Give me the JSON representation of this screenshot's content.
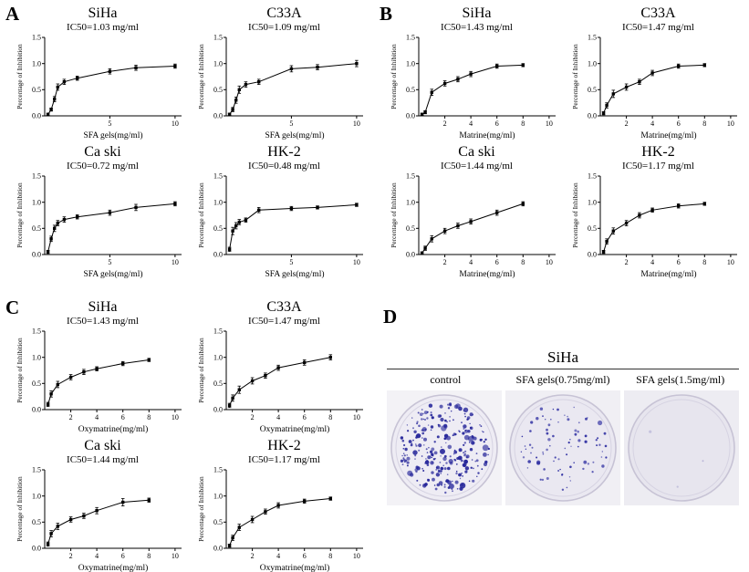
{
  "panels": {
    "A": {
      "label": "A"
    },
    "B": {
      "label": "B"
    },
    "C": {
      "label": "C"
    },
    "D": {
      "label": "D",
      "title": "SiHa",
      "conditions": [
        {
          "label": "control",
          "colonies": 270,
          "dot_scale": 1.0,
          "bg": "#f3f2f6",
          "dish_fill": "#eeecf4",
          "dot_color": "#26269a"
        },
        {
          "label": "SFA gels(0.75mg/ml)",
          "colonies": 85,
          "dot_scale": 0.72,
          "bg": "#f0eff4",
          "dish_fill": "#eae8f1",
          "dot_color": "#3434a4"
        },
        {
          "label": "SFA gels(1.5mg/ml)",
          "colonies": 3,
          "dot_scale": 0.5,
          "bg": "#edecf2",
          "dish_fill": "#e7e5ee",
          "dot_color": "#b7b4d6"
        }
      ]
    }
  },
  "chart_data": [
    {
      "type": "line",
      "panel": "A",
      "title": "SiHa",
      "subtitle": "IC50=1.03 mg/ml",
      "xlabel": "SFA gels(mg/ml)",
      "ylabel": "Percentage of Inhibition",
      "xlim": [
        0,
        10.5
      ],
      "ylim": [
        0,
        1.5
      ],
      "xticks": [
        5,
        10
      ],
      "yticks": [
        0,
        0.5,
        1,
        1.5
      ],
      "x": [
        0.25,
        0.5,
        0.75,
        1,
        1.5,
        2.5,
        5,
        7,
        10
      ],
      "y": [
        0.03,
        0.12,
        0.32,
        0.55,
        0.65,
        0.72,
        0.85,
        0.92,
        0.95
      ],
      "yerr": [
        0.02,
        0.03,
        0.05,
        0.06,
        0.05,
        0.04,
        0.05,
        0.05,
        0.04
      ],
      "marker": "square",
      "line_color": "#000000"
    },
    {
      "type": "line",
      "panel": "A",
      "title": "C33A",
      "subtitle": "IC50=1.09 mg/ml",
      "xlabel": "SFA gels(mg/ml)",
      "ylabel": "Percentage of Inhibition",
      "xlim": [
        0,
        10.5
      ],
      "ylim": [
        0,
        1.5
      ],
      "xticks": [
        5,
        10
      ],
      "yticks": [
        0,
        0.5,
        1,
        1.5
      ],
      "x": [
        0.25,
        0.5,
        0.75,
        1,
        1.5,
        2.5,
        5,
        7,
        10
      ],
      "y": [
        0.03,
        0.12,
        0.3,
        0.5,
        0.6,
        0.65,
        0.9,
        0.93,
        1.0
      ],
      "yerr": [
        0.02,
        0.04,
        0.06,
        0.07,
        0.05,
        0.05,
        0.06,
        0.05,
        0.06
      ],
      "marker": "square",
      "line_color": "#000000"
    },
    {
      "type": "line",
      "panel": "A",
      "title": "Ca ski",
      "subtitle": "IC50=0.72 mg/ml",
      "xlabel": "SFA gels(mg/ml)",
      "ylabel": "Percentage of Inhibition",
      "xlim": [
        0,
        10.5
      ],
      "ylim": [
        0,
        1.5
      ],
      "xticks": [
        5,
        10
      ],
      "yticks": [
        0,
        0.5,
        1,
        1.5
      ],
      "x": [
        0.25,
        0.5,
        0.75,
        1,
        1.5,
        2.5,
        5,
        7,
        10
      ],
      "y": [
        0.05,
        0.3,
        0.5,
        0.6,
        0.67,
        0.72,
        0.8,
        0.9,
        0.97
      ],
      "yerr": [
        0.03,
        0.05,
        0.06,
        0.05,
        0.05,
        0.04,
        0.05,
        0.06,
        0.04
      ],
      "marker": "square",
      "line_color": "#000000"
    },
    {
      "type": "line",
      "panel": "A",
      "title": "HK-2",
      "subtitle": "IC50=0.48 mg/ml",
      "xlabel": "SFA gels(mg/ml)",
      "ylabel": "Percentage of Inhibition",
      "xlim": [
        0,
        10.5
      ],
      "ylim": [
        0,
        1.5
      ],
      "xticks": [
        5,
        10
      ],
      "yticks": [
        0,
        0.5,
        1,
        1.5
      ],
      "x": [
        0.25,
        0.5,
        0.75,
        1,
        1.5,
        2.5,
        5,
        7,
        10
      ],
      "y": [
        0.1,
        0.45,
        0.55,
        0.62,
        0.66,
        0.85,
        0.88,
        0.9,
        0.95
      ],
      "yerr": [
        0.04,
        0.07,
        0.06,
        0.05,
        0.04,
        0.05,
        0.04,
        0.03,
        0.03
      ],
      "marker": "square",
      "line_color": "#000000"
    },
    {
      "type": "line",
      "panel": "B",
      "title": "SiHa",
      "subtitle": "IC50=1.43 mg/ml",
      "xlabel": "Matrine(mg/ml)",
      "ylabel": "Percentage of Inhibition",
      "xlim": [
        0,
        10.5
      ],
      "ylim": [
        0,
        1.5
      ],
      "xticks": [
        2,
        4,
        6,
        8,
        10
      ],
      "yticks": [
        0,
        0.5,
        1,
        1.5
      ],
      "x": [
        0.25,
        0.5,
        1,
        2,
        3,
        4,
        6,
        8
      ],
      "y": [
        0.03,
        0.07,
        0.45,
        0.62,
        0.7,
        0.8,
        0.95,
        0.97
      ],
      "yerr": [
        0.02,
        0.03,
        0.06,
        0.05,
        0.05,
        0.05,
        0.04,
        0.03
      ],
      "marker": "square",
      "line_color": "#000000"
    },
    {
      "type": "line",
      "panel": "B",
      "title": "C33A",
      "subtitle": "IC50=1.47 mg/ml",
      "xlabel": "Matrine(mg/ml)",
      "ylabel": "Percentage of Inhibition",
      "xlim": [
        0,
        10.5
      ],
      "ylim": [
        0,
        1.5
      ],
      "xticks": [
        2,
        4,
        6,
        8,
        10
      ],
      "yticks": [
        0,
        0.5,
        1,
        1.5
      ],
      "x": [
        0.25,
        0.5,
        1,
        2,
        3,
        4,
        6,
        8
      ],
      "y": [
        0.05,
        0.2,
        0.42,
        0.55,
        0.65,
        0.82,
        0.95,
        0.97
      ],
      "yerr": [
        0.03,
        0.05,
        0.07,
        0.06,
        0.05,
        0.05,
        0.04,
        0.03
      ],
      "marker": "square",
      "line_color": "#000000"
    },
    {
      "type": "line",
      "panel": "B",
      "title": "Ca ski",
      "subtitle": "IC50=1.44 mg/ml",
      "xlabel": "Matrine(mg/ml)",
      "ylabel": "Percentage of Inhibition",
      "xlim": [
        0,
        10.5
      ],
      "ylim": [
        0,
        1.5
      ],
      "xticks": [
        2,
        4,
        6,
        8,
        10
      ],
      "yticks": [
        0,
        0.5,
        1,
        1.5
      ],
      "x": [
        0.25,
        0.5,
        1,
        2,
        3,
        4,
        6,
        8
      ],
      "y": [
        0.03,
        0.12,
        0.3,
        0.45,
        0.55,
        0.63,
        0.8,
        0.97
      ],
      "yerr": [
        0.02,
        0.04,
        0.06,
        0.05,
        0.05,
        0.05,
        0.05,
        0.04
      ],
      "marker": "square",
      "line_color": "#000000"
    },
    {
      "type": "line",
      "panel": "B",
      "title": "HK-2",
      "subtitle": "IC50=1.17 mg/ml",
      "xlabel": "Matrine(mg/ml)",
      "ylabel": "Percentage of Inhibition",
      "xlim": [
        0,
        10.5
      ],
      "ylim": [
        0,
        1.5
      ],
      "xticks": [
        2,
        4,
        6,
        8,
        10
      ],
      "yticks": [
        0,
        0.5,
        1,
        1.5
      ],
      "x": [
        0.25,
        0.5,
        1,
        2,
        3,
        4,
        6,
        8
      ],
      "y": [
        0.05,
        0.25,
        0.45,
        0.6,
        0.75,
        0.85,
        0.93,
        0.97
      ],
      "yerr": [
        0.03,
        0.05,
        0.06,
        0.05,
        0.05,
        0.04,
        0.04,
        0.03
      ],
      "marker": "square",
      "line_color": "#000000"
    },
    {
      "type": "line",
      "panel": "C",
      "title": "SiHa",
      "subtitle": "IC50=1.43 mg/ml",
      "xlabel": "Oxymatrine(mg/ml)",
      "ylabel": "Percentage of Inhibition",
      "xlim": [
        0,
        10.5
      ],
      "ylim": [
        0,
        1.5
      ],
      "xticks": [
        2,
        4,
        6,
        8,
        10
      ],
      "yticks": [
        0,
        0.5,
        1,
        1.5
      ],
      "x": [
        0.25,
        0.5,
        1,
        2,
        3,
        4,
        6,
        8
      ],
      "y": [
        0.1,
        0.3,
        0.48,
        0.62,
        0.72,
        0.78,
        0.88,
        0.95
      ],
      "yerr": [
        0.04,
        0.06,
        0.06,
        0.05,
        0.05,
        0.04,
        0.04,
        0.03
      ],
      "marker": "square",
      "line_color": "#000000"
    },
    {
      "type": "line",
      "panel": "C",
      "title": "C33A",
      "subtitle": "IC50=1.47 mg/ml",
      "xlabel": "Oxymatrine(mg/ml)",
      "ylabel": "Percentage of Inhibition",
      "xlim": [
        0,
        10.5
      ],
      "ylim": [
        0,
        1.5
      ],
      "xticks": [
        2,
        4,
        6,
        8,
        10
      ],
      "yticks": [
        0,
        0.5,
        1,
        1.5
      ],
      "x": [
        0.25,
        0.5,
        1,
        2,
        3,
        4,
        6,
        8
      ],
      "y": [
        0.08,
        0.22,
        0.38,
        0.55,
        0.65,
        0.8,
        0.9,
        1.0
      ],
      "yerr": [
        0.04,
        0.06,
        0.07,
        0.06,
        0.05,
        0.05,
        0.05,
        0.05
      ],
      "marker": "square",
      "line_color": "#000000"
    },
    {
      "type": "line",
      "panel": "C",
      "title": "Ca ski",
      "subtitle": "IC50=1.44 mg/ml",
      "xlabel": "Oxymatrine(mg/ml)",
      "ylabel": "Percentage of Inhibition",
      "xlim": [
        0,
        10.5
      ],
      "ylim": [
        0,
        1.5
      ],
      "xticks": [
        2,
        4,
        6,
        8,
        10
      ],
      "yticks": [
        0,
        0.5,
        1,
        1.5
      ],
      "x": [
        0.25,
        0.5,
        1,
        2,
        3,
        4,
        6,
        8
      ],
      "y": [
        0.08,
        0.28,
        0.42,
        0.55,
        0.62,
        0.72,
        0.88,
        0.92
      ],
      "yerr": [
        0.04,
        0.06,
        0.06,
        0.05,
        0.05,
        0.06,
        0.07,
        0.04
      ],
      "marker": "square",
      "line_color": "#000000"
    },
    {
      "type": "line",
      "panel": "C",
      "title": "HK-2",
      "subtitle": "IC50=1.17 mg/ml",
      "xlabel": "Oxymatrine(mg/ml)",
      "ylabel": "Percentage of Inhibition",
      "xlim": [
        0,
        10.5
      ],
      "ylim": [
        0,
        1.5
      ],
      "xticks": [
        2,
        4,
        6,
        8,
        10
      ],
      "yticks": [
        0,
        0.5,
        1,
        1.5
      ],
      "x": [
        0.25,
        0.5,
        1,
        2,
        3,
        4,
        6,
        8
      ],
      "y": [
        0.05,
        0.2,
        0.4,
        0.55,
        0.7,
        0.82,
        0.9,
        0.95
      ],
      "yerr": [
        0.03,
        0.05,
        0.06,
        0.06,
        0.05,
        0.05,
        0.04,
        0.03
      ],
      "marker": "square",
      "line_color": "#000000"
    }
  ]
}
